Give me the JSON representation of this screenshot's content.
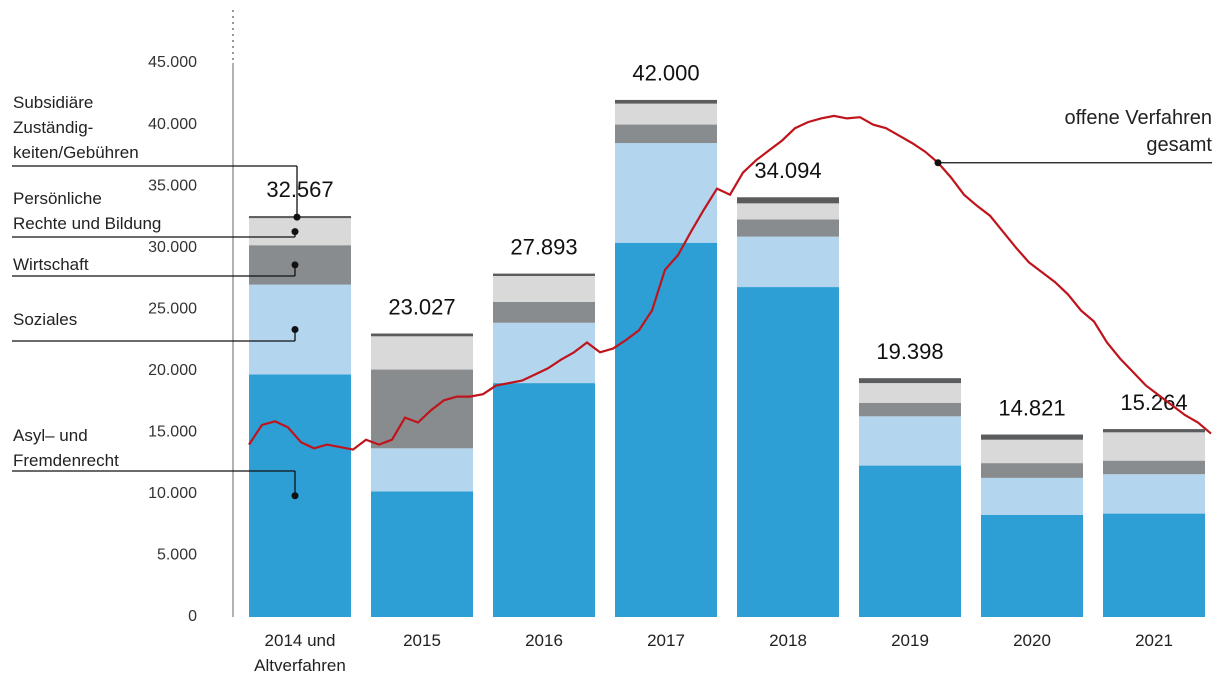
{
  "chart_data": {
    "type": "bar",
    "categories": [
      "2014 und\nAltverfahren",
      "2015",
      "2016",
      "2017",
      "2018",
      "2019",
      "2020",
      "2021"
    ],
    "series": [
      {
        "name": "Asyl– und\nFremdenrecht",
        "color": "#2e9fd4",
        "values": [
          19700,
          10200,
          19000,
          30400,
          26800,
          12300,
          8300,
          8400
        ]
      },
      {
        "name": "Soziales",
        "color": "#b3d5ee",
        "values": [
          7300,
          3500,
          4900,
          8100,
          4100,
          4000,
          3000,
          3200
        ]
      },
      {
        "name": "Wirtschaft",
        "color": "#898c8e",
        "values": [
          3200,
          6400,
          1700,
          1500,
          1400,
          1100,
          1200,
          1100
        ]
      },
      {
        "name": "Persönliche\nRechte und Bildung",
        "color": "#d9d9d9",
        "values": [
          2200,
          2700,
          2100,
          1700,
          1300,
          1600,
          1900,
          2300
        ]
      },
      {
        "name": "Subsidiäre\nZuständig-\nkeiten/Gebühren",
        "color": "#5a5c5e",
        "values": [
          167,
          227,
          193,
          300,
          494,
          398,
          421,
          264
        ]
      }
    ],
    "totals": [
      32567,
      23027,
      27893,
      42000,
      34094,
      19398,
      14821,
      15264
    ],
    "total_labels": [
      "32.567",
      "23.027",
      "27.893",
      "42.000",
      "34.094",
      "19.398",
      "14.821",
      "15.264"
    ],
    "line": {
      "name": "offene Verfahren\ngesamt",
      "color": "#c0141c",
      "values": [
        14000,
        15600,
        15900,
        15400,
        14200,
        13700,
        14000,
        13800,
        13600,
        14400,
        14000,
        14400,
        16200,
        15800,
        16800,
        17600,
        17900,
        17900,
        18100,
        18800,
        19000,
        19200,
        19700,
        20200,
        20900,
        21500,
        22300,
        21500,
        21800,
        22500,
        23300,
        24900,
        28200,
        29400,
        31300,
        33100,
        34800,
        34300,
        36100,
        37100,
        37900,
        38700,
        39700,
        40200,
        40500,
        40700,
        40500,
        40600,
        40000,
        39700,
        39100,
        38500,
        37800,
        36900,
        35700,
        34300,
        33400,
        32600,
        31300,
        30000,
        28800,
        28000,
        27200,
        26200,
        24900,
        24000,
        22300,
        21000,
        19900,
        18800,
        18000,
        17200,
        16400,
        15800,
        14900
      ]
    },
    "ylim": [
      0,
      45000
    ],
    "yticks": [
      0,
      {
        "value": 5000,
        "label": "5.000"
      },
      {
        "value": 10000,
        "label": "10.000"
      },
      {
        "value": 15000,
        "label": "15.000"
      },
      {
        "value": 20000,
        "label": "20.000"
      },
      {
        "value": 25000,
        "label": "25.000"
      },
      {
        "value": 30000,
        "label": "30.000"
      },
      {
        "value": 35000,
        "label": "35.000"
      },
      {
        "value": 40000,
        "label": "40.000"
      },
      {
        "value": 45000,
        "label": "45.000"
      }
    ]
  }
}
